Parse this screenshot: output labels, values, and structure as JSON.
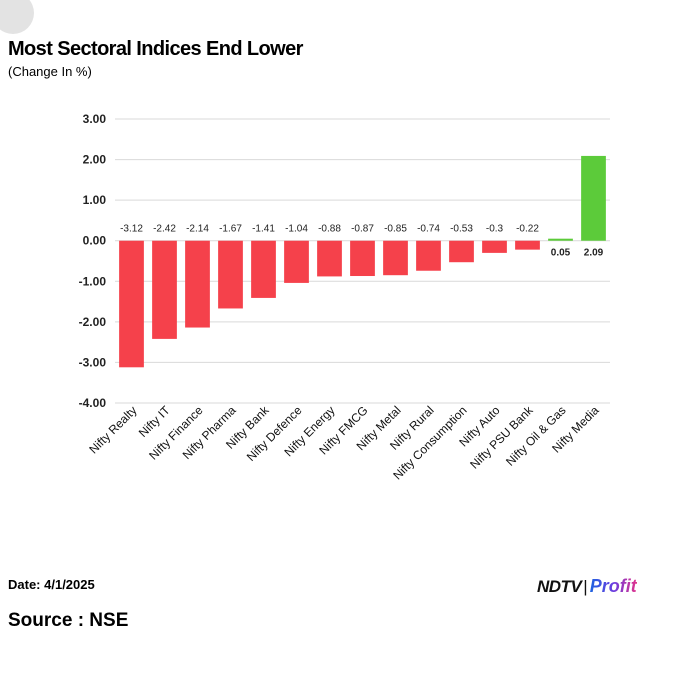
{
  "header": {
    "title": "Most Sectoral Indices End Lower",
    "subtitle": "(Change In %)"
  },
  "footer": {
    "date": "Date: 4/1/2025",
    "source": "Source : NSE",
    "logo_ndtv": "NDTV",
    "logo_separator": "|",
    "logo_profit": "Profit"
  },
  "chart_data": {
    "type": "bar",
    "categories": [
      "Nifty Realty",
      "Nifty IT",
      "Nifty Finance",
      "Nifty Pharma",
      "Nifty Bank",
      "Nifty Defence",
      "Nifty Energy",
      "Nifty FMCG",
      "Nifty Metal",
      "Nifty Rural",
      "Nifty Consumption",
      "Nifty Auto",
      "Nifty PSU Bank",
      "Nifty Oil & Gas",
      "Nifty Media"
    ],
    "values": [
      -3.12,
      -2.42,
      -2.14,
      -1.67,
      -1.41,
      -1.04,
      -0.88,
      -0.87,
      -0.85,
      -0.74,
      -0.53,
      -0.3,
      -0.22,
      0.05,
      2.09
    ],
    "data_labels": [
      "-3.12",
      "-2.42",
      "-2.14",
      "-1.67",
      "-1.41",
      "-1.04",
      "-0.88",
      "-0.87",
      "-0.85",
      "-0.74",
      "-0.53",
      "-0.3",
      "-0.22",
      "0.05",
      "2.09"
    ],
    "ylim": [
      -4,
      3
    ],
    "yticks": [
      3,
      2,
      1,
      0,
      -1,
      -2,
      -3,
      -4
    ],
    "ytick_labels": [
      "3.00",
      "2.00",
      "1.00",
      "0.00",
      "-1.00",
      "-2.00",
      "-3.00",
      "-4.00"
    ],
    "grid": true,
    "colors": {
      "negative": "#f5414b",
      "positive": "#5ccb3a",
      "grid": "#d9d9d9"
    }
  }
}
